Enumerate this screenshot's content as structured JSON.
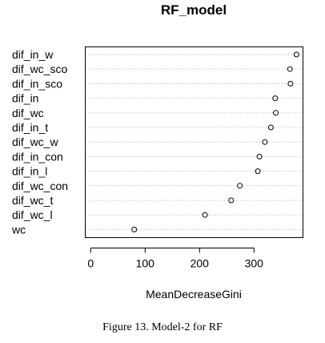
{
  "chart_data": {
    "type": "scatter",
    "title": "RF_model",
    "xlabel": "MeanDecreaseGini",
    "ylabel": "",
    "categories": [
      "dif_in_w",
      "dif_wc_sco",
      "dif_in_sco",
      "dif_in",
      "dif_wc",
      "dif_in_t",
      "dif_wc_w",
      "dif_in_con",
      "dif_in_l",
      "dif_wc_con",
      "dif_wc_t",
      "dif_wc_l",
      "wc"
    ],
    "values": [
      378,
      366,
      367,
      339,
      340,
      331,
      320,
      310,
      307,
      274,
      258,
      210,
      80
    ],
    "xlim": [
      -10,
      390
    ],
    "xticks": [
      0,
      100,
      200,
      300
    ],
    "grid": "dotted horizontal",
    "colors": {
      "grid": "#bdbdbd",
      "point": "#000000"
    }
  },
  "caption": "Figure 13. Model-2 for RF"
}
